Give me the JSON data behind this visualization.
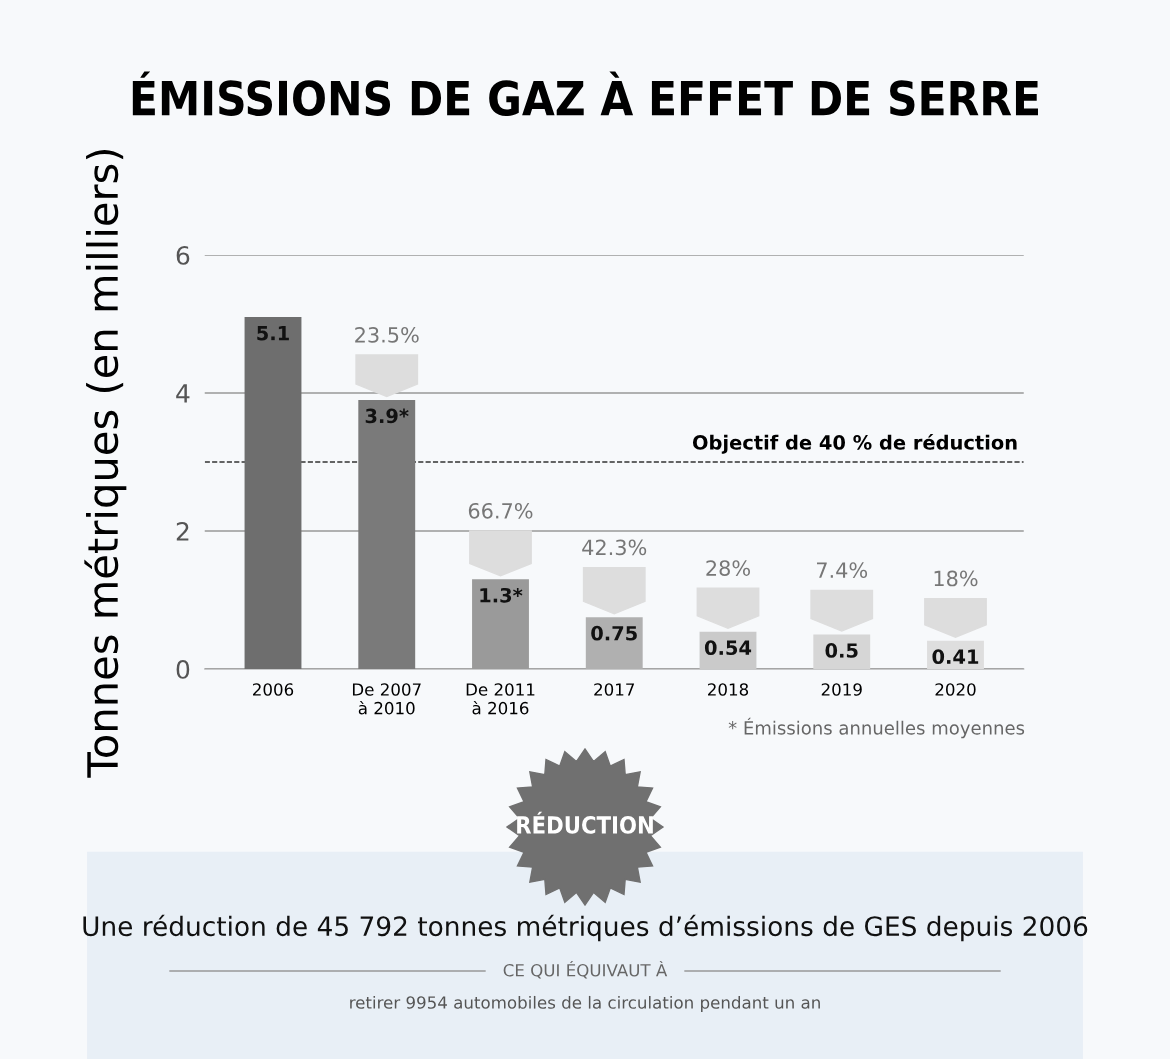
{
  "chart_data": {
    "type": "bar",
    "title": "ÉMISSIONS DE GAZ À EFFET DE SERRE",
    "ylabel": "Tonnes métriques (en milliers)",
    "categories": [
      "2006",
      "De 2007\nà 2010",
      "De 2011\nà 2016",
      "2017",
      "2018",
      "2019",
      "2020"
    ],
    "values": [
      5.1,
      3.9,
      1.3,
      0.75,
      0.54,
      0.5,
      0.41
    ],
    "value_labels": [
      "5.1",
      "3.9*",
      "1.3*",
      "0.75",
      "0.54",
      "0.5",
      "0.41"
    ],
    "colors": [
      "#6e6e6e",
      "#7a7a7a",
      "#9a9a9a",
      "#b0b0b0",
      "#cacaca",
      "#d6d6d6",
      "#dedede"
    ],
    "ylim": [
      0,
      6
    ],
    "yticks": [
      0,
      2,
      4,
      6
    ],
    "grid": "y",
    "ref_lines": [
      {
        "axis": "y",
        "value": 3,
        "label": "Objectif de 40 % de réduction",
        "color": "#333333",
        "line_style": "dashed"
      }
    ],
    "annotations": [
      "23.5%",
      "66.7%",
      "42.3%",
      "28%",
      "7.4%",
      "18%",
      "* Émissions annuelles moyennes",
      "RÉDUCTION",
      "Une réduction de 45 792 tonnes métriques d’émissions de GES depuis 2006",
      "CE QUI ÉQUIVAUT À",
      "retirer 9954 automobiles de la circulation pendant un an"
    ]
  }
}
